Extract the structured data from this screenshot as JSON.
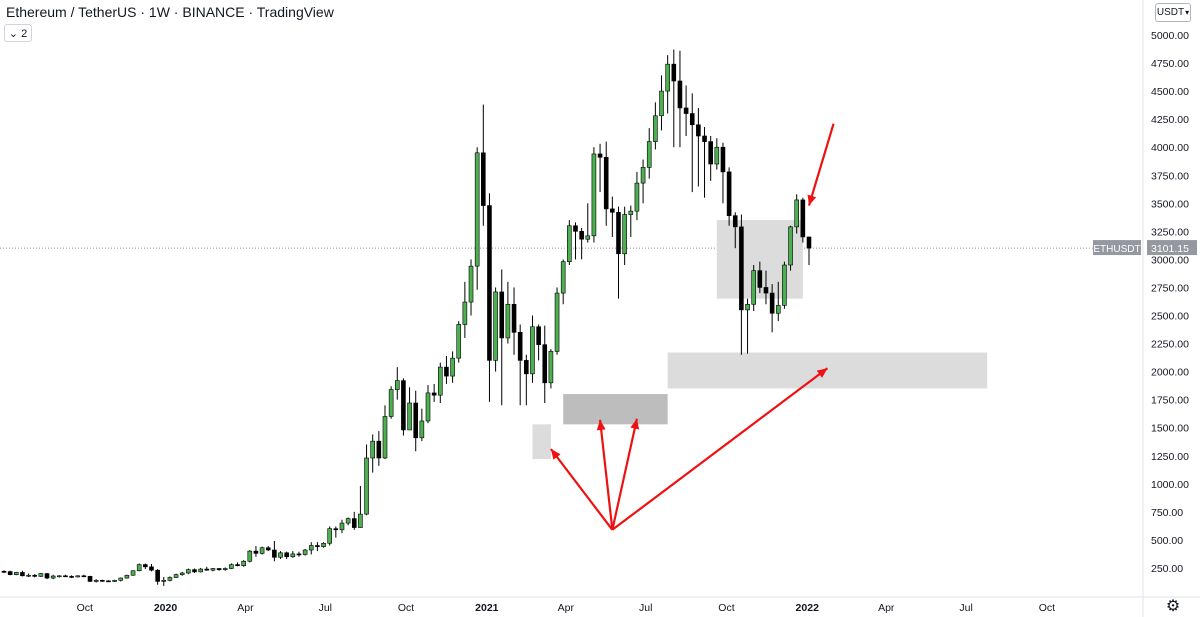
{
  "header": {
    "title": "Ethereum / TetherUS · 1W · BINANCE · TradingView",
    "legend_toggle": "⌄ 2"
  },
  "price_scale": {
    "currency": "USDT",
    "last_price_symbol": "ETHUSDT",
    "last_price": "3101.15"
  },
  "icons": {
    "settings": "gear-icon",
    "currency_dropdown": "chevron-down-icon"
  },
  "colors": {
    "bull": "#4caf50",
    "bear": "#000000",
    "zone_light": "#dcdcdc",
    "zone_dark": "#bdbdbd",
    "arrow": "#ee1111",
    "axis_text": "#131722"
  },
  "chart_data": {
    "type": "candlestick",
    "symbol": "ETHUSDT",
    "interval": "1W",
    "exchange": "BINANCE",
    "x_ticks": [
      "Oct",
      "2020",
      "Apr",
      "Jul",
      "Oct",
      "2021",
      "Apr",
      "Jul",
      "Oct",
      "2022",
      "Apr",
      "Jul",
      "Oct"
    ],
    "y_ticks": [
      250,
      500,
      750,
      1000,
      1250,
      1500,
      1750,
      2000,
      2250,
      2500,
      2750,
      3000,
      3250,
      3500,
      3750,
      4000,
      4250,
      4500,
      4750,
      5000
    ],
    "y_tick_labels": [
      "250.00",
      "500.00",
      "750.00",
      "1000.00",
      "1250.00",
      "1500.00",
      "1750.00",
      "2000.00",
      "2250.00",
      "2500.00",
      "2750.00",
      "3000.00",
      "3250.00",
      "3500.00",
      "3750.00",
      "4000.00",
      "4250.00",
      "4500.00",
      "4750.00",
      "5000.00"
    ],
    "ylim": [
      0,
      5100
    ],
    "candles": [
      [
        220,
        230,
        205,
        218
      ],
      [
        218,
        225,
        185,
        190
      ],
      [
        190,
        215,
        185,
        210
      ],
      [
        210,
        225,
        175,
        180
      ],
      [
        180,
        200,
        170,
        185
      ],
      [
        185,
        195,
        165,
        175
      ],
      [
        175,
        205,
        170,
        200
      ],
      [
        200,
        205,
        150,
        160
      ],
      [
        160,
        190,
        150,
        178
      ],
      [
        178,
        185,
        165,
        180
      ],
      [
        180,
        190,
        170,
        175
      ],
      [
        175,
        185,
        160,
        170
      ],
      [
        170,
        185,
        165,
        180
      ],
      [
        180,
        190,
        170,
        175
      ],
      [
        175,
        180,
        125,
        130
      ],
      [
        130,
        150,
        120,
        140
      ],
      [
        140,
        145,
        125,
        135
      ],
      [
        135,
        140,
        125,
        130
      ],
      [
        130,
        145,
        125,
        140
      ],
      [
        140,
        165,
        130,
        160
      ],
      [
        160,
        190,
        155,
        185
      ],
      [
        185,
        230,
        180,
        225
      ],
      [
        225,
        290,
        220,
        280
      ],
      [
        280,
        290,
        240,
        260
      ],
      [
        260,
        285,
        220,
        230
      ],
      [
        230,
        240,
        100,
        130
      ],
      [
        130,
        170,
        90,
        140
      ],
      [
        140,
        175,
        130,
        165
      ],
      [
        165,
        200,
        160,
        190
      ],
      [
        190,
        215,
        180,
        205
      ],
      [
        205,
        245,
        195,
        235
      ],
      [
        235,
        245,
        205,
        215
      ],
      [
        215,
        250,
        210,
        240
      ],
      [
        240,
        260,
        225,
        230
      ],
      [
        230,
        250,
        220,
        245
      ],
      [
        245,
        250,
        225,
        235
      ],
      [
        235,
        255,
        225,
        245
      ],
      [
        245,
        290,
        240,
        280
      ],
      [
        280,
        300,
        265,
        270
      ],
      [
        270,
        320,
        260,
        310
      ],
      [
        310,
        410,
        300,
        400
      ],
      [
        400,
        445,
        350,
        380
      ],
      [
        380,
        440,
        370,
        430
      ],
      [
        430,
        445,
        400,
        410
      ],
      [
        410,
        490,
        310,
        345
      ],
      [
        345,
        400,
        330,
        385
      ],
      [
        385,
        395,
        330,
        350
      ],
      [
        350,
        400,
        340,
        375
      ],
      [
        375,
        395,
        350,
        370
      ],
      [
        370,
        420,
        360,
        410
      ],
      [
        410,
        480,
        370,
        450
      ],
      [
        450,
        480,
        400,
        440
      ],
      [
        440,
        480,
        430,
        470
      ],
      [
        470,
        620,
        450,
        600
      ],
      [
        600,
        620,
        520,
        590
      ],
      [
        590,
        680,
        560,
        650
      ],
      [
        650,
        700,
        630,
        690
      ],
      [
        690,
        750,
        590,
        610
      ],
      [
        610,
        980,
        610,
        730
      ],
      [
        730,
        1350,
        720,
        1230
      ],
      [
        1230,
        1440,
        1100,
        1380
      ],
      [
        1380,
        1470,
        1160,
        1230
      ],
      [
        1230,
        1700,
        1220,
        1600
      ],
      [
        1600,
        1870,
        1580,
        1840
      ],
      [
        1840,
        2040,
        1750,
        1920
      ],
      [
        1920,
        1940,
        1430,
        1480
      ],
      [
        1480,
        1860,
        1480,
        1720
      ],
      [
        1720,
        1830,
        1290,
        1410
      ],
      [
        1410,
        1670,
        1380,
        1560
      ],
      [
        1560,
        1880,
        1540,
        1810
      ],
      [
        1810,
        1890,
        1730,
        1790
      ],
      [
        1790,
        2080,
        1720,
        2040
      ],
      [
        2040,
        2140,
        1890,
        1960
      ],
      [
        1960,
        2180,
        1900,
        2120
      ],
      [
        2120,
        2450,
        2080,
        2420
      ],
      [
        2420,
        2800,
        2300,
        2620
      ],
      [
        2620,
        3000,
        2500,
        2940
      ],
      [
        2940,
        4000,
        2730,
        3950
      ],
      [
        3950,
        4380,
        3300,
        3480
      ],
      [
        3480,
        3590,
        1730,
        2100
      ],
      [
        2100,
        2750,
        2000,
        2710
      ],
      [
        2710,
        2910,
        1700,
        2300
      ],
      [
        2300,
        2800,
        2250,
        2600
      ],
      [
        2600,
        2750,
        2150,
        2350
      ],
      [
        2350,
        2420,
        1700,
        2100
      ],
      [
        2100,
        2150,
        1700,
        1980
      ],
      [
        1980,
        2500,
        1900,
        2400
      ],
      [
        2400,
        2420,
        2100,
        2240
      ],
      [
        2240,
        2410,
        1720,
        1900
      ],
      [
        1900,
        2200,
        1850,
        2180
      ],
      [
        2180,
        2750,
        2150,
        2700
      ],
      [
        2700,
        3000,
        2600,
        2980
      ],
      [
        2980,
        3350,
        2950,
        3300
      ],
      [
        3300,
        3330,
        3000,
        3250
      ],
      [
        3250,
        3280,
        3000,
        3180
      ],
      [
        3180,
        3500,
        3150,
        3210
      ],
      [
        3210,
        4000,
        3150,
        3940
      ],
      [
        3940,
        4030,
        3600,
        3910
      ],
      [
        3910,
        4050,
        3300,
        3450
      ],
      [
        3450,
        3560,
        3200,
        3420
      ],
      [
        3420,
        3470,
        2650,
        3050
      ],
      [
        3050,
        3470,
        2950,
        3400
      ],
      [
        3400,
        3480,
        3200,
        3430
      ],
      [
        3430,
        3780,
        3350,
        3680
      ],
      [
        3680,
        3890,
        3500,
        3820
      ],
      [
        3820,
        4170,
        3720,
        4050
      ],
      [
        4050,
        4400,
        3980,
        4280
      ],
      [
        4280,
        4640,
        4150,
        4500
      ],
      [
        4500,
        4820,
        4300,
        4740
      ],
      [
        4740,
        4870,
        4000,
        4590
      ],
      [
        4590,
        4860,
        4000,
        4350
      ],
      [
        4350,
        4550,
        4100,
        4300
      ],
      [
        4300,
        4480,
        3600,
        4200
      ],
      [
        4200,
        4350,
        3650,
        4100
      ],
      [
        4100,
        4180,
        3550,
        4050
      ],
      [
        4050,
        4100,
        3700,
        3850
      ],
      [
        3850,
        4080,
        3800,
        4000
      ],
      [
        4000,
        4040,
        3500,
        3780
      ],
      [
        3780,
        3820,
        3300,
        3390
      ],
      [
        3390,
        3420,
        3100,
        3290
      ],
      [
        3290,
        3400,
        2150,
        2550
      ],
      [
        2550,
        2650,
        2160,
        2600
      ],
      [
        2600,
        2950,
        2540,
        2900
      ],
      [
        2900,
        2980,
        2700,
        2750
      ],
      [
        2750,
        2900,
        2600,
        2700
      ],
      [
        2700,
        2780,
        2350,
        2520
      ],
      [
        2520,
        2800,
        2450,
        2590
      ],
      [
        2590,
        2980,
        2560,
        2950
      ],
      [
        2950,
        3300,
        2900,
        3290
      ],
      [
        3290,
        3580,
        3230,
        3530
      ],
      [
        3530,
        3550,
        3150,
        3200
      ],
      [
        3200,
        3200,
        2950,
        3101
      ]
    ],
    "zones": [
      {
        "x_from": "2021-02-22",
        "x_to": "2021-03-15",
        "y_from": 1220,
        "y_to": 1530,
        "shade": "light"
      },
      {
        "x_from": "2021-03-29",
        "x_to": "2021-07-26",
        "y_from": 1530,
        "y_to": 1800,
        "shade": "dark"
      },
      {
        "x_from": "2021-07-26",
        "x_to": "2022-07-25",
        "y_from": 1850,
        "y_to": 2170,
        "shade": "light"
      },
      {
        "x_from": "2021-09-20",
        "x_to": "2021-12-27",
        "y_from": 2650,
        "y_to": 3350,
        "shade": "light"
      }
    ],
    "annotations": [
      {
        "type": "arrows",
        "from": {
          "date": "2021-05-24",
          "price": 590
        },
        "to": [
          {
            "date": "2021-03-15",
            "price": 1310
          },
          {
            "date": "2021-05-10",
            "price": 1570
          },
          {
            "date": "2021-06-21",
            "price": 1580
          },
          {
            "date": "2022-01-24",
            "price": 2030
          }
        ]
      },
      {
        "type": "arrow",
        "from": {
          "date": "2022-01-31",
          "price": 4210
        },
        "to": {
          "date": "2022-01-03",
          "price": 3480
        }
      }
    ]
  }
}
